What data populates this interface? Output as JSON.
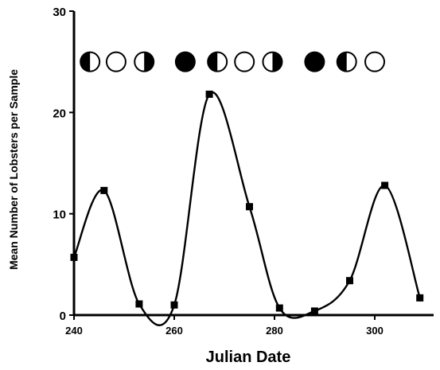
{
  "chart_data": {
    "type": "line",
    "title": "",
    "xlabel": "Julian Date",
    "ylabel": "Mean Number of Lobsters per Sample",
    "xlim": [
      240,
      309
    ],
    "ylim": [
      0,
      30
    ],
    "x_ticks": [
      240,
      260,
      280,
      300
    ],
    "x_tick_labels": [
      "240",
      "260",
      "280",
      "300"
    ],
    "y_ticks": [
      0,
      10,
      20,
      30
    ],
    "y_tick_labels": [
      "0",
      "10",
      "20",
      "30"
    ],
    "grid": false,
    "legend": "none",
    "series": [
      {
        "marker": "square",
        "color": "#000000",
        "x": [
          240,
          246,
          253,
          260,
          267,
          275,
          281,
          288,
          295,
          302,
          309
        ],
        "y": [
          5.7,
          12.3,
          1.1,
          1.0,
          21.8,
          10.7,
          0.7,
          0.4,
          3.4,
          12.8,
          1.7
        ]
      }
    ],
    "annotations": {
      "moon_phases_y": 25,
      "moon_phases": [
        {
          "x": 243.2,
          "phase": "half-dark-left"
        },
        {
          "x": 248.4,
          "phase": "full"
        },
        {
          "x": 254.0,
          "phase": "half-dark-right"
        },
        {
          "x": 262.2,
          "phase": "new"
        },
        {
          "x": 268.6,
          "phase": "half-dark-left"
        },
        {
          "x": 274.0,
          "phase": "full"
        },
        {
          "x": 279.6,
          "phase": "half-dark-right"
        },
        {
          "x": 288.0,
          "phase": "new"
        },
        {
          "x": 294.4,
          "phase": "half-dark-left"
        },
        {
          "x": 300.0,
          "phase": "full"
        }
      ]
    }
  }
}
